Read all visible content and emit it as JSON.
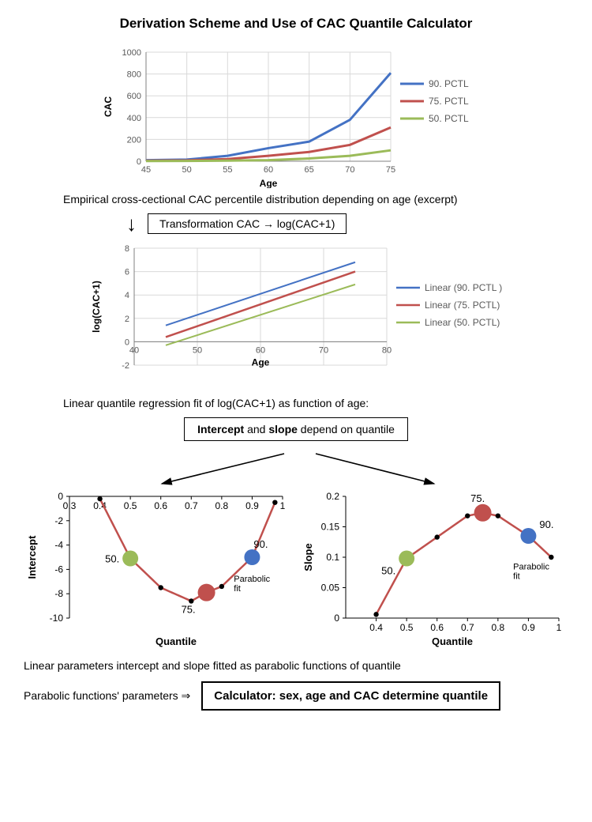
{
  "title": "Derivation Scheme and Use of CAC Quantile Calculator",
  "chart1": {
    "type": "line",
    "xlabel": "Age",
    "ylabel": "CAC",
    "xlim": [
      45,
      75
    ],
    "ylim": [
      0,
      1000
    ],
    "xticks": [
      45,
      50,
      55,
      60,
      65,
      70,
      75
    ],
    "yticks": [
      0,
      200,
      400,
      600,
      800,
      1000
    ],
    "grid_color": "#d9d9d9",
    "series": [
      {
        "label": "90. PCTL",
        "color": "#4472c4",
        "width": 3,
        "x": [
          45,
          50,
          55,
          60,
          65,
          70,
          75
        ],
        "y": [
          10,
          15,
          50,
          120,
          180,
          380,
          810
        ]
      },
      {
        "label": "75. PCTL",
        "color": "#c0504d",
        "width": 3,
        "x": [
          45,
          50,
          55,
          60,
          65,
          70,
          75
        ],
        "y": [
          5,
          8,
          20,
          50,
          85,
          150,
          310
        ]
      },
      {
        "label": "50. PCTL",
        "color": "#9bbb59",
        "width": 3,
        "x": [
          45,
          50,
          55,
          60,
          65,
          70,
          75
        ],
        "y": [
          2,
          3,
          5,
          10,
          25,
          50,
          100
        ]
      }
    ]
  },
  "caption1": "Empirical cross-cectional CAC percentile distribution depending on age (excerpt)",
  "transform_label": "Transformation CAC → log(CAC+1)",
  "chart2": {
    "type": "line",
    "xlabel": "Age",
    "ylabel": "log(CAC+1)",
    "xlim": [
      40,
      80
    ],
    "ylim": [
      -2,
      8
    ],
    "xticks": [
      40,
      50,
      60,
      70,
      80
    ],
    "yticks": [
      -2,
      0,
      2,
      4,
      6,
      8
    ],
    "grid_color": "#d9d9d9",
    "series": [
      {
        "label": "Linear (90. PCTL )",
        "color": "#4472c4",
        "width": 2,
        "x": [
          45,
          75
        ],
        "y": [
          1.4,
          6.8
        ]
      },
      {
        "label": "Linear (75. PCTL)",
        "color": "#c0504d",
        "width": 2.5,
        "x": [
          45,
          75
        ],
        "y": [
          0.4,
          6.0
        ]
      },
      {
        "label": "Linear (50. PCTL)",
        "color": "#9bbb59",
        "width": 2,
        "x": [
          45,
          75
        ],
        "y": [
          -0.3,
          4.9
        ]
      }
    ]
  },
  "caption2": "Linear quantile regression fit of log(CAC+1) as function of age:",
  "dep_box_a": "Intercept",
  "dep_box_mid": " and ",
  "dep_box_b": "slope",
  "dep_box_rest": " depend on quantile",
  "chart3": {
    "type": "scatter-curve",
    "xlabel": "Quantile",
    "ylabel": "Intercept",
    "xlim": [
      0.3,
      1.0
    ],
    "ylim": [
      -10,
      0
    ],
    "xticks": [
      0.3,
      0.4,
      0.5,
      0.6,
      0.7,
      0.8,
      0.9,
      1
    ],
    "yticks": [
      -10,
      -8,
      -6,
      -4,
      -2,
      0
    ],
    "curve_color": "#c0504d",
    "point_color": "#000000",
    "points_x": [
      0.4,
      0.5,
      0.6,
      0.7,
      0.75,
      0.8,
      0.9,
      0.975
    ],
    "points_y": [
      -0.2,
      -5.1,
      -7.5,
      -8.6,
      -7.9,
      -7.4,
      -5.0,
      -0.5
    ],
    "markers": [
      {
        "x": 0.5,
        "y": -5.1,
        "color": "#9bbb59",
        "r": 10,
        "label": "50."
      },
      {
        "x": 0.75,
        "y": -7.9,
        "color": "#c0504d",
        "r": 11,
        "label": "75."
      },
      {
        "x": 0.9,
        "y": -5.0,
        "color": "#4472c4",
        "r": 10,
        "label": "90."
      }
    ],
    "fit_label": "Parabolic fit"
  },
  "chart4": {
    "type": "scatter-curve",
    "xlabel": "Quantile",
    "ylabel": "Slope",
    "xlim": [
      0.3,
      1.0
    ],
    "ylim": [
      0,
      0.2
    ],
    "xticks": [
      0.4,
      0.5,
      0.6,
      0.7,
      0.8,
      0.9,
      1
    ],
    "yticks": [
      0,
      0.05,
      0.1,
      0.15,
      0.2
    ],
    "curve_color": "#c0504d",
    "point_color": "#000000",
    "points_x": [
      0.4,
      0.5,
      0.6,
      0.7,
      0.75,
      0.8,
      0.9,
      0.975
    ],
    "points_y": [
      0.006,
      0.098,
      0.133,
      0.168,
      0.173,
      0.168,
      0.135,
      0.1
    ],
    "markers": [
      {
        "x": 0.5,
        "y": 0.098,
        "color": "#9bbb59",
        "r": 10,
        "label": "50."
      },
      {
        "x": 0.75,
        "y": 0.173,
        "color": "#c0504d",
        "r": 11,
        "label": "75."
      },
      {
        "x": 0.9,
        "y": 0.135,
        "color": "#4472c4",
        "r": 10,
        "label": "90."
      }
    ],
    "fit_label": "Parabolic fit"
  },
  "caption3": "Linear parameters intercept and slope fitted as parabolic functions of quantile",
  "final_lead": "Parabolic functions' parameters  ⇒",
  "final_box": "Calculator: sex, age and CAC determine quantile"
}
